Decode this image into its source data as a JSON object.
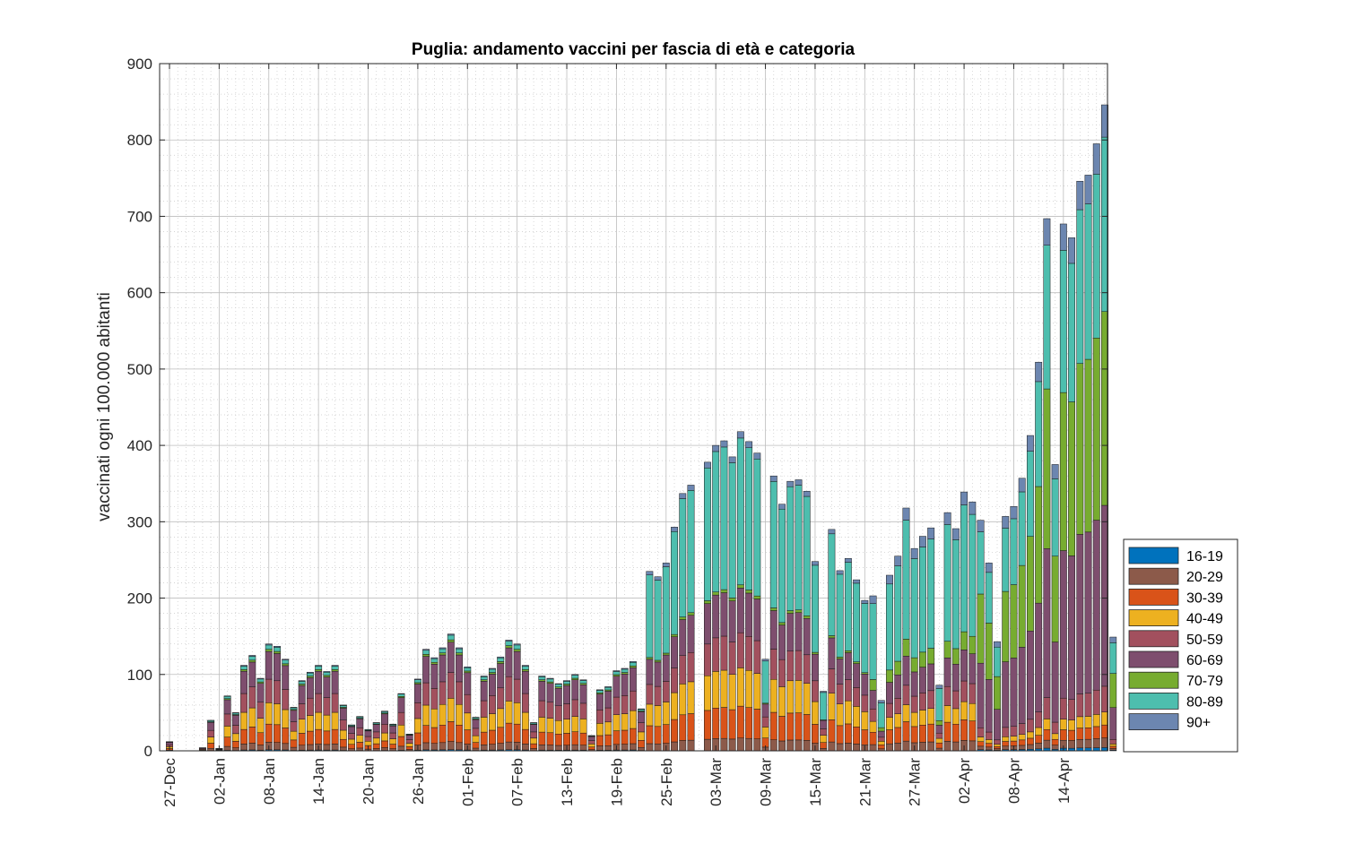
{
  "chart_data": {
    "type": "bar",
    "stacked": true,
    "title": "Puglia: andamento vaccini per fascia di età e categoria",
    "xlabel": "",
    "ylabel": "vaccinati ogni 100.000 abitanti",
    "ylim": [
      0,
      900
    ],
    "yticks": [
      0,
      100,
      200,
      300,
      400,
      500,
      600,
      700,
      800,
      900
    ],
    "grid": true,
    "minor_grid": true,
    "legend_position": "bottom-right outside",
    "x_start_date": "2020-12-27",
    "x_end_date": "2021-04-19",
    "xtick_labels": [
      "27-Dec",
      "02-Jan",
      "08-Jan",
      "14-Jan",
      "20-Jan",
      "26-Jan",
      "01-Feb",
      "07-Feb",
      "13-Feb",
      "19-Feb",
      "25-Feb",
      "03-Mar",
      "09-Mar",
      "15-Mar",
      "21-Mar",
      "27-Mar",
      "02-Apr",
      "08-Apr",
      "14-Apr"
    ],
    "series": [
      {
        "name": "16-19",
        "color": "#0072BD"
      },
      {
        "name": "20-29",
        "color": "#8C5A4A"
      },
      {
        "name": "30-39",
        "color": "#D95319"
      },
      {
        "name": "40-49",
        "color": "#EDB120"
      },
      {
        "name": "50-59",
        "color": "#A2505E"
      },
      {
        "name": "60-69",
        "color": "#7E4E6E"
      },
      {
        "name": "70-79",
        "color": "#77AC30"
      },
      {
        "name": "80-89",
        "color": "#4DBEAE"
      },
      {
        "name": "90+",
        "color": "#6C86B0"
      }
    ],
    "totals": [
      12,
      0,
      0,
      0,
      4,
      40,
      3,
      72,
      50,
      112,
      125,
      95,
      140,
      137,
      120,
      57,
      92,
      103,
      112,
      104,
      112,
      60,
      34,
      45,
      28,
      37,
      52,
      35,
      75,
      22,
      94,
      133,
      122,
      135,
      153,
      135,
      110,
      44,
      98,
      108,
      123,
      145,
      140,
      112,
      37,
      98,
      95,
      88,
      92,
      100,
      93,
      20,
      80,
      84,
      105,
      108,
      117,
      55,
      235,
      228,
      246,
      293,
      337,
      348,
      0,
      378,
      400,
      406,
      385,
      418,
      405,
      390,
      120,
      360,
      323,
      353,
      355,
      340,
      248,
      78,
      290,
      236,
      252,
      224,
      197,
      203,
      66,
      230,
      255,
      318,
      265,
      281,
      292,
      86,
      312,
      291,
      339,
      326,
      302,
      246,
      143,
      307,
      320,
      357,
      413,
      509,
      697,
      375,
      690,
      672,
      746,
      754,
      795,
      846,
      149
    ],
    "mix": [
      {
        "until": "2021-02-22",
        "shares": [
          0.01,
          0.07,
          0.17,
          0.2,
          0.22,
          0.26,
          0.02,
          0.04,
          0.01
        ]
      },
      {
        "until": "2021-03-21",
        "shares": [
          0.0,
          0.04,
          0.1,
          0.12,
          0.11,
          0.14,
          0.01,
          0.46,
          0.02
        ]
      },
      {
        "until": "2021-04-03",
        "shares": [
          0.0,
          0.04,
          0.08,
          0.07,
          0.08,
          0.12,
          0.07,
          0.49,
          0.05
        ]
      },
      {
        "until": "2021-04-19",
        "shares": [
          0.005,
          0.015,
          0.02,
          0.02,
          0.04,
          0.28,
          0.3,
          0.27,
          0.05
        ]
      }
    ]
  }
}
